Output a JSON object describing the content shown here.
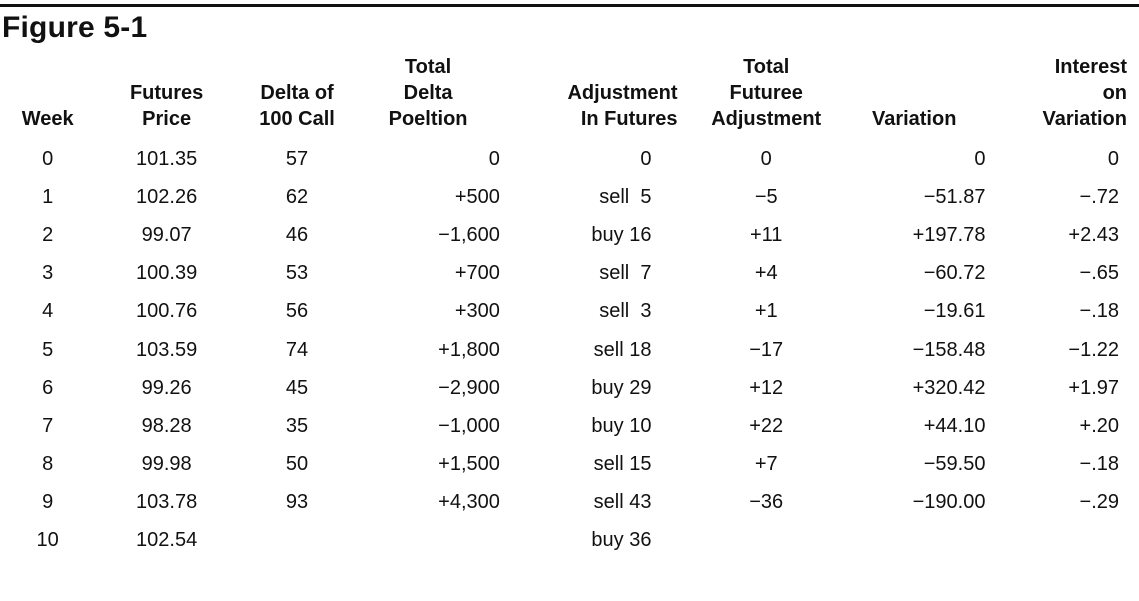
{
  "figure": {
    "title": "Figure 5-1"
  },
  "table": {
    "headers": [
      "Week",
      "Futures\nPrice",
      "Delta of\n100 Call",
      "Total\nDelta\nPoeltion",
      "Adjustment\nIn Futures",
      "Total\nFuturee\nAdjustment",
      "Variation",
      "Interest\non\nVariation"
    ],
    "rows": [
      [
        "0",
        "101.35",
        "57",
        "0",
        "0",
        "0",
        "0",
        "0"
      ],
      [
        "1",
        "102.26",
        "62",
        "+500",
        "sell  5",
        "−5",
        "−51.87",
        "−.72"
      ],
      [
        "2",
        "99.07",
        "46",
        "−1,600",
        "buy 16",
        "+11",
        "+197.78",
        "+2.43"
      ],
      [
        "3",
        "100.39",
        "53",
        "+700",
        "sell  7",
        "+4",
        "−60.72",
        "−.65"
      ],
      [
        "4",
        "100.76",
        "56",
        "+300",
        "sell  3",
        "+1",
        "−19.61",
        "−.18"
      ],
      [
        "5",
        "103.59",
        "74",
        "+1,800",
        "sell 18",
        "−17",
        "−158.48",
        "−1.22"
      ],
      [
        "6",
        "99.26",
        "45",
        "−2,900",
        "buy 29",
        "+12",
        "+320.42",
        "+1.97"
      ],
      [
        "7",
        "98.28",
        "35",
        "−1,000",
        "buy 10",
        "+22",
        "+44.10",
        "+.20"
      ],
      [
        "8",
        "99.98",
        "50",
        "+1,500",
        "sell 15",
        "+7",
        "−59.50",
        "−.18"
      ],
      [
        "9",
        "103.78",
        "93",
        "+4,300",
        "sell 43",
        "−36",
        "−190.00",
        "−.29"
      ],
      [
        "10",
        "102.54",
        "",
        "",
        "buy 36",
        "",
        "",
        ""
      ]
    ]
  }
}
